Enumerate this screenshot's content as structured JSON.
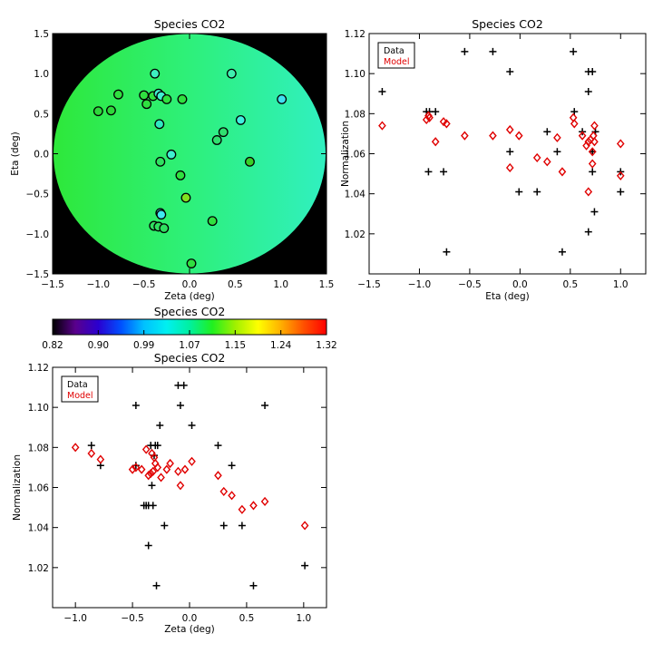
{
  "chart_data": [
    {
      "id": "map",
      "type": "scatter",
      "title": "Species CO2",
      "xlabel": "Zeta (deg)",
      "ylabel": "Eta (deg)",
      "xlim": [
        -1.5,
        1.5
      ],
      "ylim": [
        -1.5,
        1.5
      ],
      "xticks": [
        -1.5,
        -1.0,
        -0.5,
        0.0,
        0.5,
        1.0,
        1.5
      ],
      "yticks": [
        -1.5,
        -1.0,
        -0.5,
        0.0,
        0.5,
        1.0,
        1.5
      ],
      "tick_labels": [
        "−1.5",
        "−1.0",
        "−0.5",
        "0.0",
        "0.5",
        "1.0",
        "1.5"
      ],
      "field_color": "#2ef07a",
      "background_color": "#000000",
      "points": [
        {
          "zeta": -0.38,
          "eta": 1.0,
          "color": "#3ef0c0"
        },
        {
          "zeta": 0.46,
          "eta": 1.0,
          "color": "#40f0b0"
        },
        {
          "zeta": -0.78,
          "eta": 0.74,
          "color": "#30e040"
        },
        {
          "zeta": -0.5,
          "eta": 0.73,
          "color": "#30e040"
        },
        {
          "zeta": -0.4,
          "eta": 0.72,
          "color": "#30e040"
        },
        {
          "zeta": -0.34,
          "eta": 0.75,
          "color": "#40f0d0"
        },
        {
          "zeta": -0.31,
          "eta": 0.72,
          "color": "#40f0d0"
        },
        {
          "zeta": -0.25,
          "eta": 0.68,
          "color": "#30e040"
        },
        {
          "zeta": -0.08,
          "eta": 0.68,
          "color": "#30e040"
        },
        {
          "zeta": 1.01,
          "eta": 0.68,
          "color": "#40e0f0"
        },
        {
          "zeta": -0.47,
          "eta": 0.62,
          "color": "#30e040"
        },
        {
          "zeta": -1.0,
          "eta": 0.53,
          "color": "#2ed83a"
        },
        {
          "zeta": -0.86,
          "eta": 0.54,
          "color": "#2ed83a"
        },
        {
          "zeta": 0.56,
          "eta": 0.42,
          "color": "#40f0e0"
        },
        {
          "zeta": -0.33,
          "eta": 0.37,
          "color": "#30e8c0"
        },
        {
          "zeta": 0.37,
          "eta": 0.27,
          "color": "#30e070"
        },
        {
          "zeta": 0.3,
          "eta": 0.17,
          "color": "#30e070"
        },
        {
          "zeta": -0.2,
          "eta": -0.01,
          "color": "#40f0d0"
        },
        {
          "zeta": -0.32,
          "eta": -0.1,
          "color": "#30e060"
        },
        {
          "zeta": 0.66,
          "eta": -0.1,
          "color": "#38d028"
        },
        {
          "zeta": -0.1,
          "eta": -0.27,
          "color": "#30e040"
        },
        {
          "zeta": -0.04,
          "eta": -0.55,
          "color": "#80e020"
        },
        {
          "zeta": -0.32,
          "eta": -0.74,
          "color": "#40e8f0"
        },
        {
          "zeta": -0.31,
          "eta": -0.76,
          "color": "#40e8f0"
        },
        {
          "zeta": 0.25,
          "eta": -0.84,
          "color": "#30e040"
        },
        {
          "zeta": -0.39,
          "eta": -0.9,
          "color": "#30e060"
        },
        {
          "zeta": -0.34,
          "eta": -0.91,
          "color": "#30e060"
        },
        {
          "zeta": -0.28,
          "eta": -0.93,
          "color": "#30e060"
        },
        {
          "zeta": 0.02,
          "eta": -1.37,
          "color": "#30e040"
        }
      ]
    },
    {
      "id": "colorbar",
      "type": "colorbar",
      "title": "Species CO2",
      "range": [
        0.82,
        1.32
      ],
      "tick_labels": [
        "0.82",
        "0.90",
        "0.99",
        "1.07",
        "1.15",
        "1.24",
        "1.32"
      ],
      "stops": [
        "#000000",
        "#5a008c",
        "#2a00d0",
        "#0050ff",
        "#00c0ff",
        "#00f0f0",
        "#00f0a0",
        "#20f020",
        "#a0f000",
        "#ffff00",
        "#ffb000",
        "#ff5000",
        "#ff0000"
      ]
    },
    {
      "id": "eta",
      "type": "scatter",
      "title": "Species CO2",
      "xlabel": "Eta (deg)",
      "ylabel": "Normalization",
      "xlim": [
        -1.5,
        1.25
      ],
      "ylim": [
        1.0,
        1.12
      ],
      "xticks": [
        -1.5,
        -1.0,
        -0.5,
        0.0,
        0.5,
        1.0
      ],
      "yticks": [
        1.02,
        1.04,
        1.06,
        1.08,
        1.1,
        1.12
      ],
      "xtick_labels": [
        "−1.5",
        "−1.0",
        "−0.5",
        "0.0",
        "0.5",
        "1.0"
      ],
      "ytick_labels": [
        "1.02",
        "1.04",
        "1.06",
        "1.08",
        "1.10",
        "1.12"
      ],
      "legend": {
        "position": "top-left",
        "entries": [
          {
            "label": "Data",
            "color": "#000000"
          },
          {
            "label": "Model",
            "color": "#e00000"
          }
        ]
      },
      "series": [
        {
          "name": "Data",
          "marker": "plus",
          "color": "#000000",
          "points": [
            [
              -1.37,
              1.091
            ],
            [
              -0.93,
              1.081
            ],
            [
              -0.9,
              1.081
            ],
            [
              -0.84,
              1.081
            ],
            [
              -0.91,
              1.051
            ],
            [
              -0.76,
              1.051
            ],
            [
              -0.73,
              1.011
            ],
            [
              -0.55,
              1.111
            ],
            [
              -0.27,
              1.111
            ],
            [
              -0.1,
              1.101
            ],
            [
              -0.1,
              1.061
            ],
            [
              -0.01,
              1.041
            ],
            [
              0.17,
              1.041
            ],
            [
              0.27,
              1.071
            ],
            [
              0.37,
              1.061
            ],
            [
              0.42,
              1.011
            ],
            [
              0.53,
              1.111
            ],
            [
              0.54,
              1.081
            ],
            [
              0.62,
              1.071
            ],
            [
              0.68,
              1.101
            ],
            [
              0.72,
              1.101
            ],
            [
              0.68,
              1.091
            ],
            [
              0.68,
              1.021
            ],
            [
              0.72,
              1.051
            ],
            [
              0.72,
              1.061
            ],
            [
              0.74,
              1.031
            ],
            [
              0.75,
              1.071
            ],
            [
              1.0,
              1.051
            ],
            [
              1.0,
              1.041
            ]
          ]
        },
        {
          "name": "Model",
          "marker": "diamond",
          "color": "#e00000",
          "points": [
            [
              -1.37,
              1.074
            ],
            [
              -0.93,
              1.077
            ],
            [
              -0.91,
              1.079
            ],
            [
              -0.9,
              1.078
            ],
            [
              -0.84,
              1.066
            ],
            [
              -0.76,
              1.076
            ],
            [
              -0.73,
              1.075
            ],
            [
              -0.55,
              1.069
            ],
            [
              -0.27,
              1.069
            ],
            [
              -0.1,
              1.072
            ],
            [
              -0.1,
              1.053
            ],
            [
              -0.01,
              1.069
            ],
            [
              0.17,
              1.058
            ],
            [
              0.27,
              1.056
            ],
            [
              0.37,
              1.068
            ],
            [
              0.42,
              1.051
            ],
            [
              0.53,
              1.078
            ],
            [
              0.54,
              1.075
            ],
            [
              0.62,
              1.069
            ],
            [
              0.66,
              1.064
            ],
            [
              0.68,
              1.066
            ],
            [
              0.68,
              1.041
            ],
            [
              0.7,
              1.067
            ],
            [
              0.72,
              1.055
            ],
            [
              0.72,
              1.061
            ],
            [
              0.73,
              1.069
            ],
            [
              0.74,
              1.074
            ],
            [
              0.74,
              1.066
            ],
            [
              1.0,
              1.065
            ],
            [
              1.0,
              1.049
            ]
          ]
        }
      ]
    },
    {
      "id": "zeta",
      "type": "scatter",
      "title": "Species CO2",
      "xlabel": "Zeta (deg)",
      "ylabel": "Normalization",
      "xlim": [
        -1.2,
        1.2
      ],
      "ylim": [
        1.0,
        1.12
      ],
      "xticks": [
        -1.0,
        -0.5,
        0.0,
        0.5,
        1.0
      ],
      "yticks": [
        1.02,
        1.04,
        1.06,
        1.08,
        1.1,
        1.12
      ],
      "xtick_labels": [
        "−1.0",
        "−0.5",
        "0.0",
        "0.5",
        "1.0"
      ],
      "ytick_labels": [
        "1.02",
        "1.04",
        "1.06",
        "1.08",
        "1.10",
        "1.12"
      ],
      "legend": {
        "position": "top-left",
        "entries": [
          {
            "label": "Data",
            "color": "#000000"
          },
          {
            "label": "Model",
            "color": "#e00000"
          }
        ]
      },
      "series": [
        {
          "name": "Data",
          "marker": "plus",
          "color": "#000000",
          "points": [
            [
              -0.86,
              1.081
            ],
            [
              -0.78,
              1.071
            ],
            [
              -0.47,
              1.101
            ],
            [
              -0.47,
              1.071
            ],
            [
              -0.4,
              1.051
            ],
            [
              -0.38,
              1.051
            ],
            [
              -0.36,
              1.051
            ],
            [
              -0.36,
              1.031
            ],
            [
              -0.34,
              1.081
            ],
            [
              -0.33,
              1.061
            ],
            [
              -0.32,
              1.051
            ],
            [
              -0.31,
              1.076
            ],
            [
              -0.3,
              1.081
            ],
            [
              -0.29,
              1.011
            ],
            [
              -0.28,
              1.081
            ],
            [
              -0.26,
              1.091
            ],
            [
              -0.22,
              1.041
            ],
            [
              -0.1,
              1.111
            ],
            [
              -0.08,
              1.101
            ],
            [
              -0.05,
              1.111
            ],
            [
              0.02,
              1.091
            ],
            [
              0.25,
              1.081
            ],
            [
              0.3,
              1.041
            ],
            [
              0.37,
              1.071
            ],
            [
              0.46,
              1.041
            ],
            [
              0.56,
              1.011
            ],
            [
              0.66,
              1.101
            ],
            [
              1.01,
              1.021
            ]
          ]
        },
        {
          "name": "Model",
          "marker": "diamond",
          "color": "#e00000",
          "points": [
            [
              -1.0,
              1.08
            ],
            [
              -0.86,
              1.077
            ],
            [
              -0.78,
              1.074
            ],
            [
              -0.5,
              1.069
            ],
            [
              -0.47,
              1.07
            ],
            [
              -0.42,
              1.069
            ],
            [
              -0.38,
              1.079
            ],
            [
              -0.36,
              1.066
            ],
            [
              -0.34,
              1.067
            ],
            [
              -0.33,
              1.077
            ],
            [
              -0.32,
              1.068
            ],
            [
              -0.31,
              1.075
            ],
            [
              -0.3,
              1.072
            ],
            [
              -0.28,
              1.07
            ],
            [
              -0.25,
              1.065
            ],
            [
              -0.2,
              1.069
            ],
            [
              -0.17,
              1.072
            ],
            [
              -0.1,
              1.068
            ],
            [
              -0.08,
              1.061
            ],
            [
              -0.04,
              1.069
            ],
            [
              0.02,
              1.073
            ],
            [
              0.25,
              1.066
            ],
            [
              0.3,
              1.058
            ],
            [
              0.37,
              1.056
            ],
            [
              0.46,
              1.049
            ],
            [
              0.56,
              1.051
            ],
            [
              0.66,
              1.053
            ],
            [
              1.01,
              1.041
            ]
          ]
        }
      ]
    }
  ]
}
